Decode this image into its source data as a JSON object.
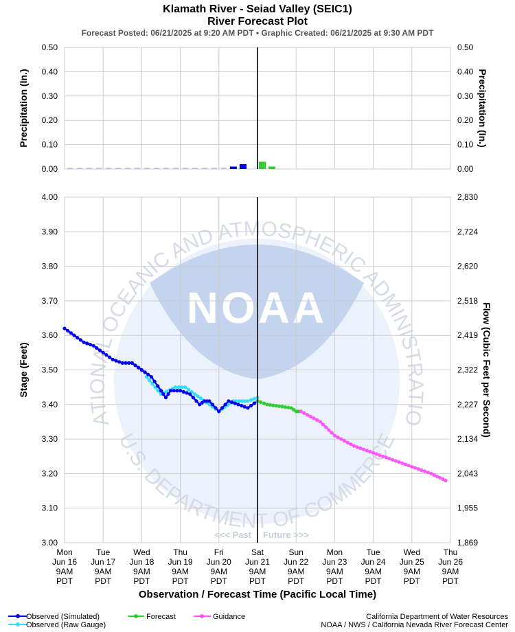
{
  "header": {
    "title_line1": "Klamath River - Seiad Valley (SEIC1)",
    "title_line2": "River Forecast Plot",
    "subtitle": "Forecast Posted: 06/21/2025 at 9:20 AM PDT  •  Graphic Created: 06/21/2025 at 9:30 AM PDT"
  },
  "watermark": {
    "ring_top": "NATIONAL OCEANIC AND ATMOSPHERIC ADMINISTRATION",
    "ring_bottom": "U.S. DEPARTMENT OF COMMERCE",
    "logo": "NOAA",
    "past_label": "<<< Past",
    "future_label": "Future >>>"
  },
  "colors": {
    "observed_simulated": "#0000ee",
    "observed_raw": "#33ddff",
    "forecast": "#33cc33",
    "guidance": "#ff55ff",
    "now_line": "#333333",
    "grid": "#cccccc"
  },
  "legend": {
    "observed_simulated": "Observed (Simulated)",
    "observed_raw": "Observed (Raw Gauge)",
    "forecast": "Forecast",
    "guidance": "Guidance"
  },
  "credits": {
    "line1": "California Department of Water Resources",
    "line2": "NOAA / NWS / California Nevada River Forecast Center"
  },
  "chart_data": [
    {
      "type": "bar",
      "ylabel": "Precipitation (In.)",
      "y2label": "Precipitation (In.)",
      "ylim": [
        0,
        0.5
      ],
      "yticks": [
        "0.00",
        "0.10",
        "0.20",
        "0.30",
        "0.40",
        "0.50"
      ],
      "grid": true,
      "series": [
        {
          "name": "Observed (Simulated)",
          "x": [
            "2025-06-20 18:00",
            "2025-06-21 00:00"
          ],
          "values": [
            0.01,
            0.02
          ]
        },
        {
          "name": "Forecast",
          "x": [
            "2025-06-21 12:00",
            "2025-06-21 18:00"
          ],
          "values": [
            0.03,
            0.01
          ]
        }
      ]
    },
    {
      "type": "line",
      "xlabel": "Observation / Forecast Time (Pacific Local Time)",
      "ylabel": "Stage (Feet)",
      "y2label": "Flow (Cubic Feet per Second)",
      "ylim": [
        3.0,
        4.0
      ],
      "yticks": [
        "3.00",
        "3.10",
        "3.20",
        "3.30",
        "3.40",
        "3.50",
        "3.60",
        "3.70",
        "3.80",
        "3.90",
        "4.00"
      ],
      "y2ticks": [
        "1,869",
        "1,955",
        "2,043",
        "2,134",
        "2,227",
        "2,322",
        "2,419",
        "2,518",
        "2,620",
        "2,724",
        "2,830"
      ],
      "grid": true,
      "legend_position": "bottom",
      "xlim": [
        "2025-06-16 09:00",
        "2025-06-26 09:00"
      ],
      "now": "2025-06-21 09:00",
      "xticks": [
        {
          "day": "Mon",
          "date": "Jun 16",
          "hour": "9AM",
          "tz": "PDT"
        },
        {
          "day": "Tue",
          "date": "Jun 17",
          "hour": "9AM",
          "tz": "PDT"
        },
        {
          "day": "Wed",
          "date": "Jun 18",
          "hour": "9AM",
          "tz": "PDT"
        },
        {
          "day": "Thu",
          "date": "Jun 19",
          "hour": "9AM",
          "tz": "PDT"
        },
        {
          "day": "Fri",
          "date": "Jun 20",
          "hour": "9AM",
          "tz": "PDT"
        },
        {
          "day": "Sat",
          "date": "Jun 21",
          "hour": "9AM",
          "tz": "PDT"
        },
        {
          "day": "Sun",
          "date": "Jun 22",
          "hour": "9AM",
          "tz": "PDT"
        },
        {
          "day": "Mon",
          "date": "Jun 23",
          "hour": "9AM",
          "tz": "PDT"
        },
        {
          "day": "Tue",
          "date": "Jun 24",
          "hour": "9AM",
          "tz": "PDT"
        },
        {
          "day": "Wed",
          "date": "Jun 25",
          "hour": "9AM",
          "tz": "PDT"
        },
        {
          "day": "Thu",
          "date": "Jun 26",
          "hour": "9AM",
          "tz": "PDT"
        }
      ],
      "series": [
        {
          "name": "Observed (Simulated)",
          "x": [
            "2025-06-16 09:00",
            "2025-06-16 15:00",
            "2025-06-16 21:00",
            "2025-06-17 03:00",
            "2025-06-17 09:00",
            "2025-06-17 15:00",
            "2025-06-17 21:00",
            "2025-06-18 03:00",
            "2025-06-18 09:00",
            "2025-06-18 15:00",
            "2025-06-18 21:00",
            "2025-06-19 00:00",
            "2025-06-19 03:00",
            "2025-06-19 09:00",
            "2025-06-19 15:00",
            "2025-06-19 21:00",
            "2025-06-20 00:00",
            "2025-06-20 03:00",
            "2025-06-20 09:00",
            "2025-06-20 15:00",
            "2025-06-20 21:00",
            "2025-06-21 03:00",
            "2025-06-21 09:00"
          ],
          "values": [
            3.62,
            3.6,
            3.58,
            3.57,
            3.55,
            3.53,
            3.52,
            3.52,
            3.5,
            3.48,
            3.44,
            3.42,
            3.44,
            3.44,
            3.43,
            3.4,
            3.41,
            3.41,
            3.38,
            3.41,
            3.4,
            3.39,
            3.41
          ]
        },
        {
          "name": "Observed (Raw Gauge)",
          "x": [
            "2025-06-18 12:00",
            "2025-06-18 21:00",
            "2025-06-19 06:00",
            "2025-06-19 12:00",
            "2025-06-19 18:00",
            "2025-06-20 03:00",
            "2025-06-20 09:00",
            "2025-06-20 18:00",
            "2025-06-21 03:00",
            "2025-06-21 09:00"
          ],
          "values": [
            3.48,
            3.43,
            3.45,
            3.45,
            3.43,
            3.4,
            3.38,
            3.41,
            3.41,
            3.42
          ]
        },
        {
          "name": "Forecast",
          "x": [
            "2025-06-21 09:00",
            "2025-06-21 15:00",
            "2025-06-22 06:00",
            "2025-06-22 09:00",
            "2025-06-22 12:00"
          ],
          "values": [
            3.41,
            3.4,
            3.39,
            3.38,
            3.38
          ]
        },
        {
          "name": "Guidance",
          "x": [
            "2025-06-22 12:00",
            "2025-06-23 00:00",
            "2025-06-23 09:00",
            "2025-06-23 21:00",
            "2025-06-24 09:00",
            "2025-06-24 21:00",
            "2025-06-25 09:00",
            "2025-06-25 21:00",
            "2025-06-26 06:00"
          ],
          "values": [
            3.38,
            3.35,
            3.31,
            3.28,
            3.26,
            3.24,
            3.22,
            3.2,
            3.18
          ]
        }
      ]
    }
  ]
}
